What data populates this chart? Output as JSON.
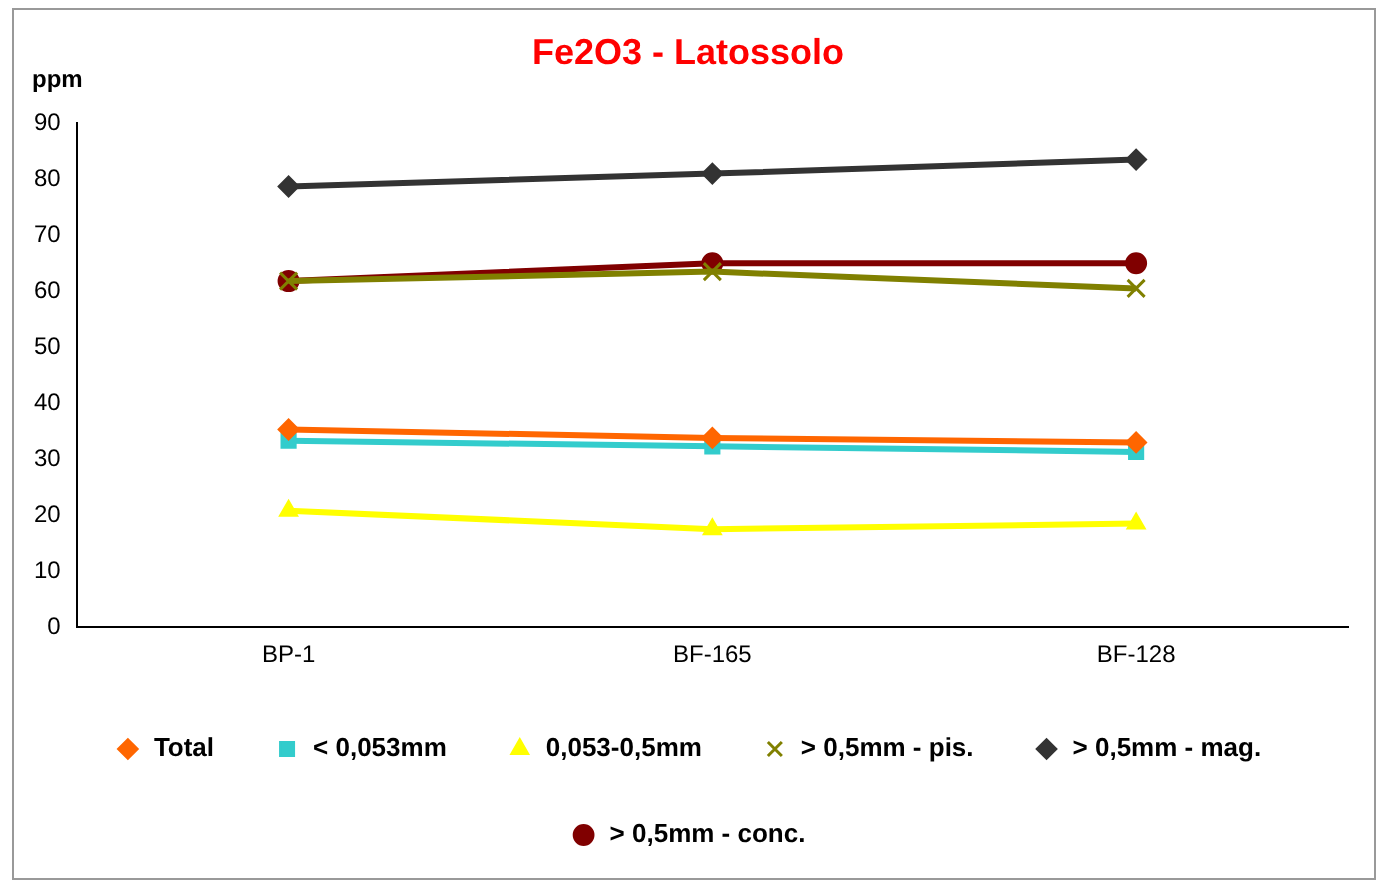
{
  "chart_data": {
    "type": "line",
    "title": "Fe2O3 - Latossolo",
    "ylabel": "ppm",
    "categories": [
      "BP-1",
      "BF-165",
      "BF-128"
    ],
    "ylim": [
      0,
      90
    ],
    "yticks": [
      0,
      10,
      20,
      30,
      40,
      50,
      60,
      70,
      80,
      90
    ],
    "grid": false,
    "legend": "bottom",
    "series": [
      {
        "name": "Total",
        "color": "#ff6600",
        "marker": "diamond",
        "values": [
          35.3,
          33.8,
          33
        ]
      },
      {
        "name": "< 0,053mm",
        "color": "#33cccc",
        "marker": "square",
        "values": [
          33.3,
          32.3,
          31.3
        ]
      },
      {
        "name": "0,053-0,5mm",
        "color": "#ffff00",
        "marker": "triangle",
        "values": [
          20.8,
          17.5,
          18.5
        ]
      },
      {
        "name": "> 0,5mm - pis.",
        "color": "#808000",
        "marker": "cross",
        "values": [
          61.8,
          63.5,
          60.5
        ]
      },
      {
        "name": "> 0,5mm - mag.",
        "color": "#333333",
        "marker": "diamond",
        "values": [
          78.7,
          81,
          83.5
        ]
      },
      {
        "name": "> 0,5mm - conc.",
        "color": "#800000",
        "marker": "circle",
        "values": [
          61.8,
          65,
          65
        ]
      }
    ]
  }
}
